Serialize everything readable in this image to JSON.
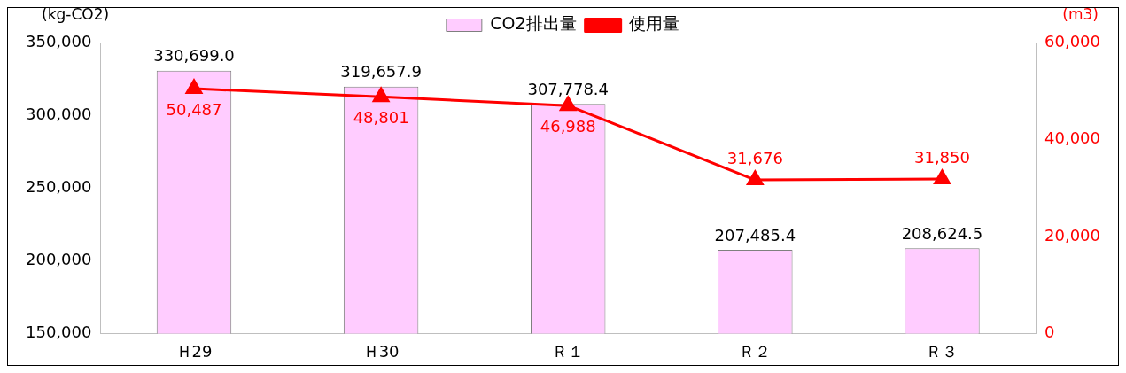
{
  "chart_data": {
    "type": "bar",
    "categories": [
      "Ｈ29",
      "Ｈ30",
      "Ｒ１",
      "Ｒ２",
      "Ｒ３"
    ],
    "ylabel": "(kg-CO2)",
    "y2label": "(m3)",
    "series": [
      {
        "name": "CO2排出量",
        "color": "#ffccff",
        "values": [
          330699.0,
          319657.9,
          307778.4,
          207485.4,
          208624.5
        ],
        "value_labels": [
          "330,699.0",
          "319,657.9",
          "307,778.4",
          "207,485.4",
          "208,624.5"
        ]
      },
      {
        "name": "使用量",
        "type": "line",
        "axis": "y2",
        "color": "#ff0000",
        "marker": "triangle",
        "values": [
          50487,
          48801,
          46988,
          31676,
          31850
        ],
        "value_labels": [
          "50,487",
          "48,801",
          "46,988",
          "31,676",
          "31,850"
        ]
      }
    ],
    "ylim": [
      150000,
      350000
    ],
    "yticks": [
      {
        "value": 150000,
        "label": "150,000"
      },
      {
        "value": 200000,
        "label": "200,000"
      },
      {
        "value": 250000,
        "label": "250,000"
      },
      {
        "value": 300000,
        "label": "300,000"
      },
      {
        "value": 350000,
        "label": "350,000"
      }
    ],
    "y2lim": [
      0,
      60000
    ],
    "y2ticks": [
      0,
      {
        "value": 20000,
        "label": "20,000"
      },
      {
        "value": 40000,
        "label": "40,000"
      },
      {
        "value": 60000,
        "label": "60,000"
      }
    ],
    "grid": false,
    "legend": "top"
  }
}
